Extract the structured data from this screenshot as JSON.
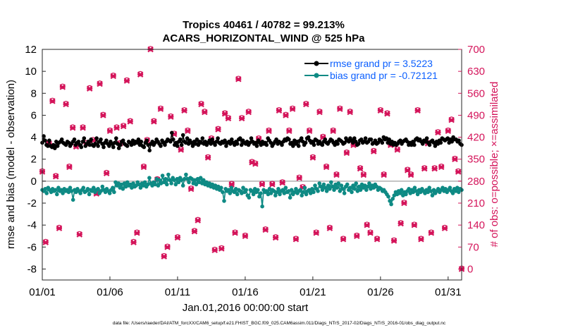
{
  "chart_data": {
    "type": "line",
    "title": "Tropics 40461 / 40782 = 99.213%",
    "subtitle": "ACARS_HORIZONTAL_WIND @ 525 hPa",
    "xlabel": "Jan.01,2016 00:00:00 start",
    "ylabel_left": "rmse and bias (model - observation)",
    "ylabel_right": "# of obs: o=possible; ×=assimilated",
    "footer": "data file: /Users/raeder/DAI/ATM_forcXX/CAM6_setup/f.e21.FHIST_BGC.f09_025.CAM6assim.011/Diags_NTrS_2017-02/Diags_NTrS_2016-01/obs_diag_output.nc",
    "x_tick_labels": [
      "01/01",
      "01/06",
      "01/11",
      "01/16",
      "01/21",
      "01/26",
      "01/31"
    ],
    "x_tick_values": [
      1,
      6,
      11,
      16,
      21,
      26,
      31
    ],
    "xlim": [
      1,
      32
    ],
    "ylim_left": [
      -9,
      12
    ],
    "y_ticks_left": [
      "-8",
      "-6",
      "-4",
      "-2",
      "0",
      "2",
      "4",
      "6",
      "8",
      "10",
      "12"
    ],
    "ylim_right": [
      -35,
      700
    ],
    "y_ticks_right": [
      "0",
      "70",
      "140",
      "210",
      "280",
      "350",
      "420",
      "490",
      "560",
      "630",
      "700"
    ],
    "legend_location": "top-right",
    "colors": {
      "rmse": "#000000",
      "bias": "#0e8a84",
      "obs": "#d4145a",
      "zero_line": "#b0b0b0"
    },
    "series": [
      {
        "name": "rmse grand pr = 3.5223",
        "axis": "left",
        "values": [
          3.5,
          4.1,
          3.7,
          3.3,
          3.2,
          3.7,
          3.2,
          3.1,
          3.3,
          3.0,
          3.6,
          3.2,
          3.5,
          3.6,
          3.8,
          3.5,
          3.4,
          3.3,
          3.6,
          3.5,
          3.2,
          3.4,
          3.6,
          3.8,
          3.3,
          3.5,
          3.6,
          3.3,
          3.1,
          3.6,
          3.9,
          3.2,
          3.4,
          3.6,
          3.3,
          3.8,
          3.3,
          3.2,
          3.4,
          3.9,
          3.2,
          3.6,
          3.8,
          3.4,
          3.1,
          3.5,
          3.7,
          3.4,
          3.2,
          3.6,
          3.4,
          3.1,
          3.5,
          3.9,
          3.4,
          3.0,
          3.3,
          3.6,
          3.7,
          3.4,
          3.3,
          3.2,
          3.6,
          3.5,
          3.3,
          3.7,
          3.4,
          3.6,
          3.5,
          3.8,
          3.3,
          3.6,
          3.2,
          3.1,
          3.5,
          3.7,
          3.3,
          2.8,
          3.4,
          3.6,
          3.3,
          3.5,
          3.8,
          3.6,
          3.4,
          3.2,
          3.7,
          3.5,
          3.3,
          3.6,
          3.8,
          3.7,
          3.6,
          4.4,
          3.8,
          3.3,
          3.5,
          3.2,
          3.6,
          3.8,
          3.3,
          4.2,
          3.6,
          3.5,
          3.9,
          3.4,
          3.7,
          3.5,
          3.2,
          3.6,
          3.4,
          3.8,
          3.3,
          3.6,
          3.5,
          3.9,
          3.4,
          3.6,
          3.3,
          3.5,
          3.7,
          3.4,
          3.8,
          3.5,
          3.3,
          3.6,
          3.9,
          3.5,
          3.4,
          3.6,
          3.5,
          3.7,
          3.2,
          3.5,
          3.6,
          3.4,
          3.8,
          3.5,
          3.3,
          3.6,
          3.4,
          3.8,
          3.9,
          3.3,
          3.7,
          3.5,
          3.4,
          3.6,
          3.3,
          3.5,
          3.9,
          3.6,
          3.4,
          3.5,
          3.2,
          3.7,
          3.5,
          3.3,
          3.6,
          3.4,
          3.5,
          3.3,
          3.9,
          3.7,
          3.5,
          3.2,
          3.4,
          3.6,
          3.8,
          3.4,
          3.6,
          3.5,
          3.3,
          3.6,
          3.8,
          3.7,
          3.9,
          3.8,
          3.4,
          3.5,
          3.2,
          3.7,
          3.4,
          3.6,
          3.2,
          3.7,
          3.9,
          3.6,
          3.3,
          3.5,
          3.9,
          4.0,
          3.7,
          3.5,
          3.6,
          3.3,
          3.8,
          3.7,
          3.4,
          3.6,
          3.4,
          3.3,
          3.6,
          3.8,
          3.5,
          3.4,
          3.6,
          3.8,
          3.7,
          3.5,
          3.3,
          3.6,
          3.4,
          3.8,
          3.7,
          3.6,
          3.4,
          3.5,
          3.9,
          3.7,
          3.6,
          3.9,
          3.7,
          3.5,
          3.9,
          3.6,
          3.3,
          3.4,
          3.7,
          3.8,
          3.5,
          3.6,
          3.9,
          3.5,
          3.6,
          3.8,
          3.8,
          3.4,
          3.5,
          3.7,
          3.4,
          3.5,
          3.8,
          3.7,
          3.5,
          4.0,
          3.8,
          3.9,
          3.5,
          3.8,
          3.4,
          3.6,
          3.3,
          3.5,
          3.3,
          3.4,
          3.6,
          3.7,
          3.4,
          3.6,
          3.7,
          3.8,
          3.6,
          3.3,
          3.5,
          3.3,
          3.6,
          3.3,
          3.8,
          3.9,
          3.7,
          3.8,
          3.6,
          3.4,
          3.7,
          3.6,
          3.9,
          3.5,
          3.3,
          3.6,
          3.7,
          3.5,
          3.2,
          3.6,
          3.4,
          3.7,
          3.5,
          3.9,
          3.8,
          3.7,
          3.8,
          3.9,
          3.5,
          3.8,
          3.6,
          4.0,
          3.8,
          3.8,
          3.6,
          3.7,
          3.4,
          3.3
        ]
      },
      {
        "name": "bias grand pr = -0.72121",
        "axis": "left",
        "values": [
          -0.8,
          -0.9,
          -0.7,
          -1.1,
          -0.6,
          -0.8,
          -1.0,
          -0.7,
          -0.9,
          -0.8,
          -1.2,
          -0.6,
          -0.9,
          -0.8,
          -1.1,
          -0.7,
          -0.9,
          -0.8,
          -1.0,
          -0.6,
          -0.9,
          -1.7,
          -0.8,
          -1.0,
          -0.7,
          -0.9,
          -1.1,
          -0.8,
          -0.6,
          -1.0,
          -0.9,
          -0.7,
          -1.2,
          -0.8,
          -0.9,
          -0.6,
          -1.0,
          -0.8,
          -0.7,
          -1.1,
          -0.9,
          -0.5,
          -0.8,
          -1.0,
          -0.7,
          -0.9,
          -1.1,
          -0.8,
          -0.6,
          -1.0,
          -0.1,
          -0.4,
          -0.2,
          -0.6,
          -0.3,
          -0.7,
          -0.2,
          -0.5,
          -0.1,
          -0.4,
          -0.3,
          -0.6,
          -0.2,
          -0.5,
          -0.4,
          -0.1,
          -0.3,
          -0.6,
          -0.2,
          -0.4,
          -0.1,
          -0.5,
          -0.3,
          0.3,
          -0.2,
          -0.4,
          -0.1,
          -0.3,
          0.2,
          -0.4,
          0.1,
          -0.2,
          0.5,
          -0.1,
          0.2,
          -0.3,
          0.6,
          0.1,
          -0.2,
          0.3,
          0.1,
          -0.3,
          0.2,
          -0.1,
          0.3,
          0.1,
          -0.4,
          0.2,
          0.6,
          0.2,
          -0.1,
          0.3,
          0.2,
          -0.2,
          0.1,
          -0.3,
          0.2,
          -0.1,
          0.3,
          -0.2,
          0.1,
          -0.3,
          -0.1,
          -0.4,
          -0.2,
          -0.5,
          -0.3,
          -0.6,
          -0.4,
          -0.7,
          -0.5,
          -0.8,
          -0.6,
          -1.0,
          -1.8,
          -0.7,
          -0.9,
          -0.8,
          -1.1,
          -0.6,
          -0.9,
          -1.0,
          -0.7,
          -1.2,
          -0.8,
          -0.9,
          -1.1,
          -0.6,
          -1.0,
          -0.8,
          -1.3,
          -1.5,
          -0.8,
          -0.9,
          -1.2,
          -0.7,
          -1.0,
          -0.8,
          -1.4,
          -1.1,
          -2.3,
          -0.8,
          -1.0,
          -0.9,
          -1.2,
          -0.7,
          -1.1,
          -0.8,
          -0.9,
          -1.3,
          -1.0,
          -0.7,
          -1.2,
          -0.9,
          -0.8,
          -1.1,
          -0.6,
          -1.0,
          -0.9,
          -1.5,
          -0.8,
          -1.2,
          -1.0,
          -0.7,
          -1.1,
          -0.9,
          -0.8,
          -1.3,
          -1.0,
          -0.6,
          -1.2,
          -0.9,
          -0.8,
          -1.1,
          -0.7,
          -1.0,
          -0.4,
          -0.7,
          -0.9,
          -0.2,
          -0.5,
          -0.8,
          -0.3,
          -0.6,
          -0.9,
          -0.4,
          -0.7,
          -0.1,
          -0.5,
          -0.8,
          -0.3,
          -0.6,
          -0.2,
          -0.9,
          -0.4,
          -0.7,
          -1.1,
          -0.5,
          -0.3,
          -0.8,
          -0.6,
          -1.0,
          -0.4,
          -0.7,
          -0.2,
          -0.9,
          -0.5,
          -0.8,
          -0.3,
          -0.6,
          -0.4,
          -0.8,
          -0.5,
          -0.2,
          -0.7,
          -0.4,
          -0.6,
          -0.3,
          -0.5,
          -0.8,
          -0.6,
          -0.7,
          -0.9,
          -0.8,
          -1.0,
          -1.2,
          -1.4,
          -1.8,
          -2.1,
          -1.6,
          -1.3,
          -1.0,
          -1.2,
          -0.9,
          -1.1,
          -0.8,
          -1.3,
          -1.0,
          -1.2,
          -0.9,
          -0.7,
          -1.1,
          -0.8,
          -1.0,
          -0.6,
          -0.9,
          -1.2,
          -0.8,
          -1.0,
          -0.7,
          -0.9,
          -1.1,
          -0.8,
          -1.0,
          -0.6,
          -0.9,
          -1.3,
          -0.8,
          -1.1,
          -0.9,
          -0.7,
          -1.0,
          -0.8,
          -0.6,
          -0.9,
          -0.7,
          -1.0,
          -0.8,
          -0.6,
          -0.9,
          -1.1,
          -0.7,
          -0.9,
          -0.6,
          -1.0,
          -0.7,
          -0.8
        ]
      }
    ],
    "obs_counts": {
      "axis": "right",
      "x": [
        1.0,
        1.25,
        1.5,
        1.75,
        2.0,
        2.25,
        2.5,
        2.75,
        3.0,
        3.25,
        3.5,
        3.75,
        4.0,
        4.25,
        4.5,
        4.75,
        5.0,
        5.25,
        5.5,
        5.75,
        6.0,
        6.25,
        6.5,
        6.75,
        7.0,
        7.25,
        7.5,
        7.75,
        8.0,
        8.25,
        8.5,
        8.75,
        9.0,
        9.25,
        9.5,
        9.75,
        10.0,
        10.25,
        10.5,
        10.75,
        11.0,
        11.25,
        11.5,
        11.75,
        12.0,
        12.25,
        12.5,
        12.75,
        13.0,
        13.25,
        13.5,
        13.75,
        14.0,
        14.25,
        14.5,
        14.75,
        15.0,
        15.25,
        15.5,
        15.75,
        16.0,
        16.25,
        16.5,
        16.75,
        17.0,
        17.25,
        17.5,
        17.75,
        18.0,
        18.25,
        18.5,
        18.75,
        19.0,
        19.25,
        19.5,
        19.75,
        20.0,
        20.25,
        20.5,
        20.75,
        21.0,
        21.25,
        21.5,
        21.75,
        22.0,
        22.25,
        22.5,
        22.75,
        23.0,
        23.25,
        23.5,
        23.75,
        24.0,
        24.25,
        24.5,
        24.75,
        25.0,
        25.25,
        25.5,
        25.75,
        26.0,
        26.25,
        26.5,
        26.75,
        27.0,
        27.25,
        27.5,
        27.75,
        28.0,
        28.25,
        28.5,
        28.75,
        29.0,
        29.25,
        29.5,
        29.75,
        30.0,
        30.25,
        30.5,
        30.75,
        31.0,
        31.25,
        31.5,
        31.75,
        32.0
      ],
      "possible": [
        310,
        85,
        400,
        535,
        295,
        130,
        580,
        525,
        325,
        450,
        390,
        110,
        450,
        400,
        575,
        410,
        240,
        590,
        490,
        305,
        440,
        615,
        450,
        400,
        455,
        600,
        470,
        85,
        115,
        620,
        325,
        410,
        700,
        470,
        285,
        510,
        40,
        70,
        485,
        430,
        100,
        380,
        505,
        440,
        255,
        120,
        155,
        525,
        500,
        355,
        415,
        60,
        445,
        65,
        495,
        480,
        270,
        115,
        605,
        480,
        105,
        500,
        340,
        335,
        415,
        270,
        125,
        440,
        270,
        100,
        505,
        275,
        490,
        440,
        510,
        95,
        290,
        260,
        525,
        440,
        355,
        115,
        500,
        420,
        325,
        130,
        440,
        300,
        510,
        95,
        370,
        500,
        395,
        105,
        320,
        300,
        140,
        115,
        375,
        95,
        505,
        300,
        495,
        395,
        90,
        380,
        145,
        210,
        315,
        300,
        140,
        505,
        95,
        320,
        400,
        115,
        320,
        435,
        325,
        130,
        440,
        475,
        350,
        310,
        0
      ]
    }
  }
}
